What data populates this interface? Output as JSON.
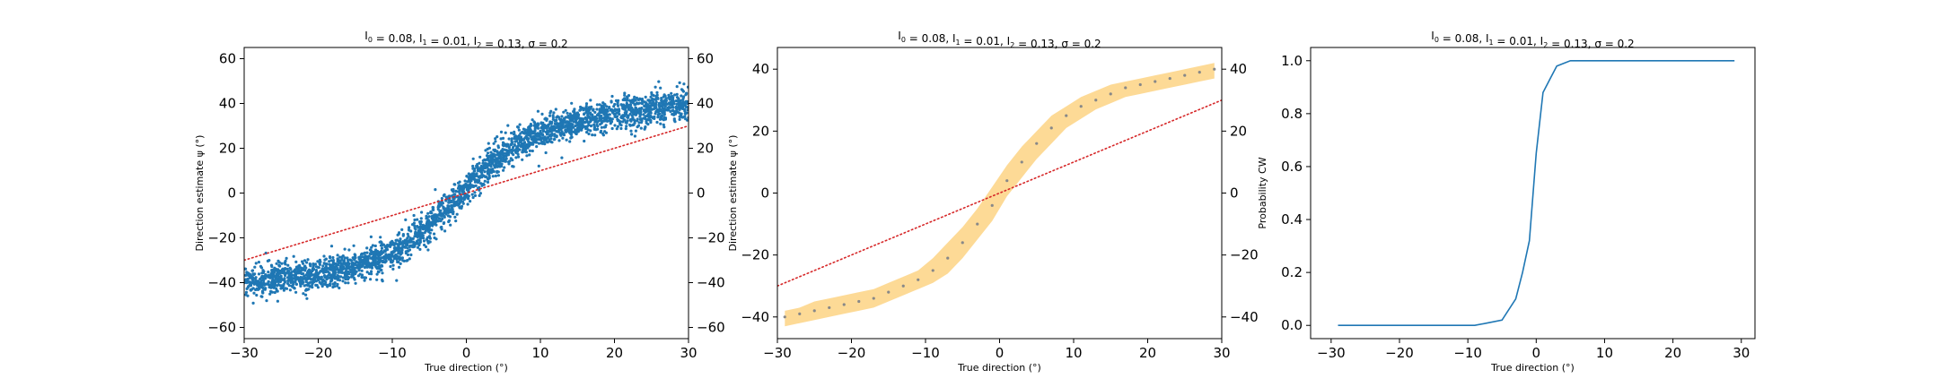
{
  "chart_data": [
    {
      "type": "scatter",
      "title": "I₀ = 0.08, I₁ = 0.01, I₂ = 0.13, σ = 0.2",
      "xlabel": "True direction (°)",
      "ylabel": "Direction estimate ψ (°)",
      "xlim": [
        -30,
        30
      ],
      "ylim": [
        -65,
        65
      ],
      "xticks": [
        -30,
        -20,
        -10,
        0,
        10,
        20,
        30
      ],
      "yticks": [
        -60,
        -40,
        -20,
        0,
        20,
        40,
        60
      ],
      "yticks_right": [
        -60,
        -40,
        -20,
        0,
        20,
        40,
        60
      ],
      "scatter_color": "#1f77b4",
      "reference_line": {
        "x": [
          -30,
          30
        ],
        "y": [
          -30,
          30
        ],
        "color": "#d62728",
        "style": "dotted"
      },
      "curve": {
        "x": [
          -30,
          -25,
          -20,
          -15,
          -10,
          -8,
          -6,
          -4,
          -2,
          0,
          2,
          4,
          6,
          8,
          10,
          15,
          20,
          25,
          30
        ],
        "y": [
          -40,
          -38,
          -36,
          -33,
          -27,
          -22,
          -17,
          -11,
          -5,
          2,
          9,
          15,
          20,
          24,
          27,
          32,
          35,
          38,
          40
        ]
      },
      "scatter_spread": 3.5,
      "n_points": 3000
    },
    {
      "type": "area",
      "title": "I₀ = 0.08, I₁ = 0.01, I₂ = 0.13, σ = 0.2",
      "xlabel": "True direction (°)",
      "ylabel": "Direction estimate ψ (°)",
      "xlim": [
        -30,
        30
      ],
      "ylim": [
        -47,
        47
      ],
      "xticks": [
        -30,
        -20,
        -10,
        0,
        10,
        20,
        30
      ],
      "yticks": [
        -40,
        -20,
        0,
        20,
        40
      ],
      "yticks_right": [
        -40,
        -20,
        0,
        20,
        40
      ],
      "band_color": "#fdd890",
      "marker_color": "#888888",
      "reference_line": {
        "x": [
          -30,
          30
        ],
        "y": [
          -30,
          30
        ],
        "color": "#d62728",
        "style": "dotted"
      },
      "x": [
        -29,
        -27,
        -25,
        -23,
        -21,
        -19,
        -17,
        -15,
        -13,
        -11,
        -9,
        -7,
        -5,
        -3,
        -1,
        1,
        3,
        5,
        7,
        9,
        11,
        13,
        15,
        17,
        19,
        21,
        23,
        25,
        27,
        29
      ],
      "mean": [
        -40,
        -39,
        -38,
        -37,
        -36,
        -35,
        -34,
        -32,
        -30,
        -28,
        -25,
        -21,
        -16,
        -10,
        -4,
        4,
        10,
        16,
        21,
        25,
        28,
        30,
        32,
        34,
        35,
        36,
        37,
        38,
        39,
        40
      ],
      "lower": [
        -43,
        -42,
        -41,
        -40,
        -39,
        -38,
        -37,
        -35,
        -33,
        -31,
        -29,
        -26,
        -21,
        -15,
        -9,
        -1,
        5,
        11,
        16,
        21,
        24,
        27,
        29,
        31,
        32,
        33,
        34,
        35,
        36,
        37
      ],
      "upper": [
        -38,
        -37,
        -35,
        -34,
        -33,
        -32,
        -31,
        -29,
        -27,
        -25,
        -21,
        -16,
        -11,
        -5,
        2,
        9,
        15,
        20,
        25,
        28,
        31,
        33,
        35,
        36,
        37,
        38,
        39,
        40,
        41,
        42
      ]
    },
    {
      "type": "line",
      "title": "I₀ = 0.08, I₁ = 0.01, I₂ = 0.13, σ = 0.2",
      "xlabel": "True direction (°)",
      "ylabel": "Probability CW",
      "xlim": [
        -33,
        32
      ],
      "ylim": [
        -0.05,
        1.05
      ],
      "xticks": [
        -30,
        -20,
        -10,
        0,
        10,
        20,
        30
      ],
      "yticks": [
        0.0,
        0.2,
        0.4,
        0.6,
        0.8,
        1.0
      ],
      "ytick_labels": [
        "0.0",
        "0.2",
        "0.4",
        "0.6",
        "0.8",
        "1.0"
      ],
      "line_color": "#1f77b4",
      "x": [
        -29,
        -9,
        -7,
        -5,
        -3,
        -2,
        -1,
        0,
        1,
        2,
        3,
        4,
        5,
        29
      ],
      "y": [
        0,
        0,
        0.01,
        0.02,
        0.1,
        0.2,
        0.32,
        0.65,
        0.88,
        0.93,
        0.98,
        0.99,
        1.0,
        1.0
      ]
    }
  ]
}
